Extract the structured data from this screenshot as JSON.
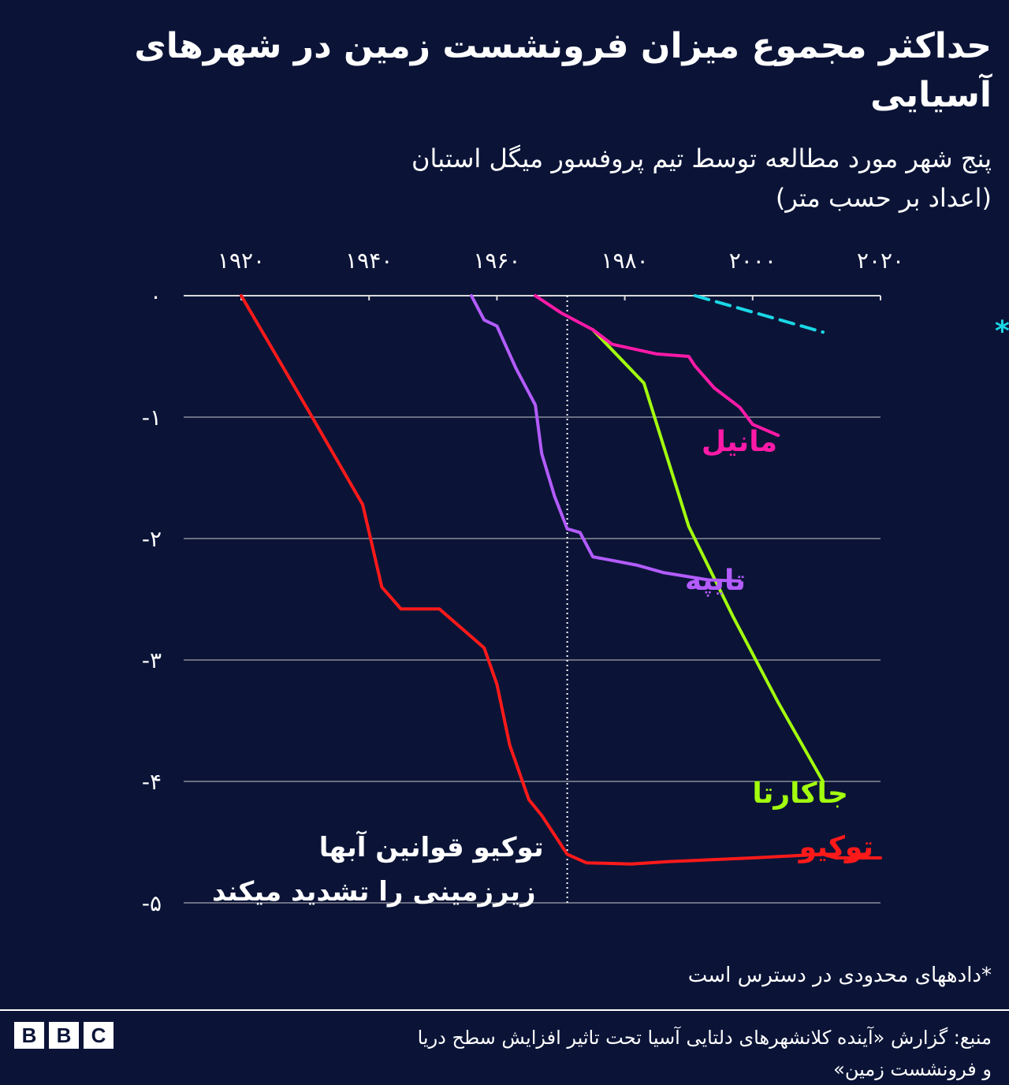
{
  "header": {
    "title": "حداکثر مجموع میزان فرونشست زمین در شهرهای آسیایی",
    "subtitle_line1": "پنج شهر مورد مطالعه توسط تیم پروفسور میگل استبان",
    "subtitle_line2": "(اعداد بر حسب متر)"
  },
  "chart_data": {
    "type": "line",
    "x_ticks": [
      1920,
      1940,
      1960,
      1980,
      2000,
      2020
    ],
    "x_tick_labels": [
      "۱۹۲۰",
      "۱۹۴۰",
      "۱۹۶۰",
      "۱۹۸۰",
      "۲۰۰۰",
      "۲۰۲۰"
    ],
    "y_ticks": [
      0,
      -1,
      -2,
      -3,
      -4,
      -5
    ],
    "y_tick_labels": [
      "۰",
      "-۱",
      "-۲",
      "-۳",
      "-۴",
      "-۵"
    ],
    "xlim": [
      1911,
      2020
    ],
    "ylim": [
      -5,
      0
    ],
    "x_axis_position": "top",
    "grid": true,
    "annotation": {
      "x": 1971,
      "line1": "توکیو قوانین آبها",
      "line2": "زیرزمینی را تشدید میکند"
    },
    "series": [
      {
        "name": "توکیو",
        "color": "#ff1a1a",
        "dashed": false,
        "points": [
          [
            1920,
            0
          ],
          [
            1930,
            -0.9
          ],
          [
            1939,
            -1.72
          ],
          [
            1942,
            -2.4
          ],
          [
            1945,
            -2.58
          ],
          [
            1951,
            -2.58
          ],
          [
            1958,
            -2.9
          ],
          [
            1960,
            -3.2
          ],
          [
            1962,
            -3.7
          ],
          [
            1965,
            -4.15
          ],
          [
            1967,
            -4.28
          ],
          [
            1971,
            -4.6
          ],
          [
            1974,
            -4.67
          ],
          [
            1981,
            -4.68
          ],
          [
            1987,
            -4.66
          ],
          [
            2000,
            -4.63
          ],
          [
            2011,
            -4.6
          ],
          [
            2013,
            -4.63
          ],
          [
            2020,
            -4.63
          ]
        ]
      },
      {
        "name": "جاکارتا",
        "color": "#a3ff0d",
        "dashed": false,
        "points": [
          [
            1975,
            -0.28
          ],
          [
            1983,
            -0.72
          ],
          [
            1990,
            -1.9
          ],
          [
            1997,
            -2.65
          ],
          [
            2004,
            -3.35
          ],
          [
            2011,
            -4.0
          ]
        ]
      },
      {
        "name": "تایپه",
        "color": "#b35cff",
        "dashed": false,
        "points": [
          [
            1956,
            0
          ],
          [
            1958,
            -0.2
          ],
          [
            1960,
            -0.25
          ],
          [
            1963,
            -0.6
          ],
          [
            1966,
            -0.9
          ],
          [
            1967,
            -1.3
          ],
          [
            1969,
            -1.65
          ],
          [
            1971,
            -1.92
          ],
          [
            1973,
            -1.95
          ],
          [
            1975,
            -2.15
          ],
          [
            1978,
            -2.18
          ],
          [
            1982,
            -2.22
          ],
          [
            1986,
            -2.28
          ],
          [
            1993,
            -2.34
          ],
          [
            1998,
            -2.35
          ]
        ]
      },
      {
        "name": "مانیل",
        "color": "#ff1aa8",
        "dashed": false,
        "points": [
          [
            1966,
            0
          ],
          [
            1970,
            -0.14
          ],
          [
            1975,
            -0.28
          ],
          [
            1978,
            -0.4
          ],
          [
            1985,
            -0.48
          ],
          [
            1990,
            -0.5
          ],
          [
            1991,
            -0.58
          ],
          [
            1994,
            -0.76
          ],
          [
            1998,
            -0.92
          ],
          [
            2000,
            -1.06
          ],
          [
            2004,
            -1.15
          ]
        ]
      },
      {
        "name": "هوشی مین*",
        "color": "#1ad7e6",
        "dashed": true,
        "points": [
          [
            1991,
            0
          ],
          [
            2011,
            -0.3
          ]
        ]
      }
    ]
  },
  "footer": {
    "note": "*دادههای محدودی در دسترس است",
    "source_line1": "منبع: گزارش «آینده کلانشهرهای دلتایی آسیا تحت تاثیر افزایش سطح دریا",
    "source_line2": "و فرونشست زمین»",
    "logo": [
      "B",
      "B",
      "C"
    ]
  }
}
